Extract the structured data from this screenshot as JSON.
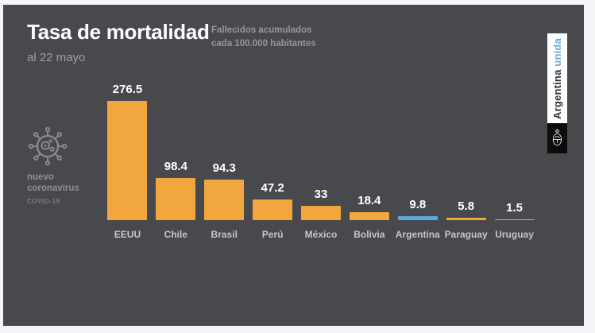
{
  "panel": {
    "title": "Tasa de mortalidad",
    "subtitle": "al 22 mayo",
    "legend_line1": "Fallecidos acumulados",
    "legend_line2": "cada 100.000 habitantes"
  },
  "badge": {
    "line1": "nuevo",
    "line2": "coronavirus",
    "line3": "COVID-19"
  },
  "banner": {
    "text_dark": "Argentina",
    "text_accent": "unida"
  },
  "colors": {
    "panel_bg": "#47494d",
    "bar_default": "#f2a73e",
    "bar_highlight": "#5ea7da",
    "value_label": "#ffffff",
    "category_label": "#c4c6c8",
    "banner_accent": "#64aee0"
  },
  "chart_data": {
    "type": "bar",
    "title": "Tasa de mortalidad",
    "subtitle": "al 22 mayo",
    "units": "Fallecidos acumulados cada 100.000 habitantes",
    "categories": [
      "EEUU",
      "Chile",
      "Brasil",
      "Perú",
      "México",
      "Bolivia",
      "Argentina",
      "Paraguay",
      "Uruguay"
    ],
    "values": [
      276.5,
      98.4,
      94.3,
      47.2,
      33,
      18.4,
      9.8,
      5.8,
      1.5
    ],
    "value_labels": [
      "276.5",
      "98.4",
      "94.3",
      "47.2",
      "33",
      "18.4",
      "9.8",
      "5.8",
      "1.5"
    ],
    "highlight_category": "Argentina",
    "bar_color": "#f2a73e",
    "highlight_color": "#5ea7da",
    "ylim": [
      0,
      290
    ],
    "grid": false,
    "legend": "none",
    "value_labels_position": "above-bars"
  }
}
